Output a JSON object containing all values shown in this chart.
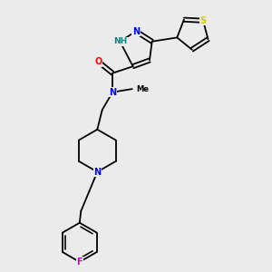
{
  "bg_color": "#ebebeb",
  "atom_colors": {
    "N": "#0000ee",
    "O": "#ff0000",
    "S": "#cccc00",
    "F": "#cc00cc",
    "H": "#008888",
    "C": "#000000"
  },
  "font_size": 7.0,
  "fig_size": [
    3.0,
    3.0
  ],
  "dpi": 100,
  "lw": 1.3
}
